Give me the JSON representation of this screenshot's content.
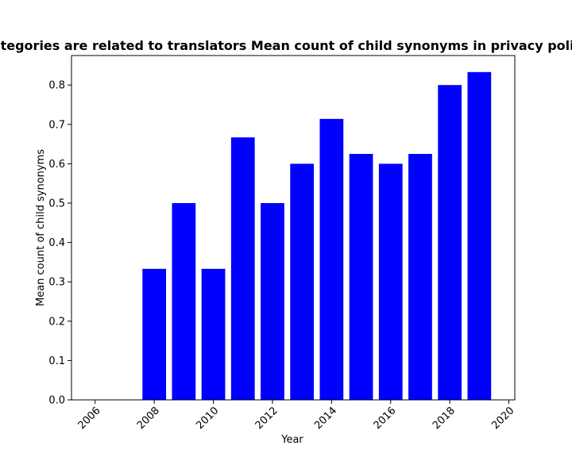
{
  "chart_data": {
    "type": "bar",
    "title": "Categories are related to translators Mean count of child synonyms in privacy policies",
    "xlabel": "Year",
    "ylabel": "Mean count of child synonyms",
    "x": [
      2008,
      2009,
      2010,
      2011,
      2012,
      2013,
      2014,
      2015,
      2016,
      2017,
      2018,
      2019
    ],
    "values": [
      0.333,
      0.5,
      0.333,
      0.667,
      0.5,
      0.6,
      0.714,
      0.625,
      0.6,
      0.625,
      0.8,
      0.833
    ],
    "xlim": [
      2005.2,
      2020.2
    ],
    "ylim": [
      0,
      0.875
    ],
    "xticks": [
      "2006",
      "2008",
      "2010",
      "2012",
      "2014",
      "2016",
      "2018",
      "2020"
    ],
    "yticks": [
      "0.0",
      "0.1",
      "0.2",
      "0.3",
      "0.4",
      "0.5",
      "0.6",
      "0.7",
      "0.8"
    ],
    "bar_color": "#0000ff",
    "grid": false,
    "legend": "none"
  }
}
